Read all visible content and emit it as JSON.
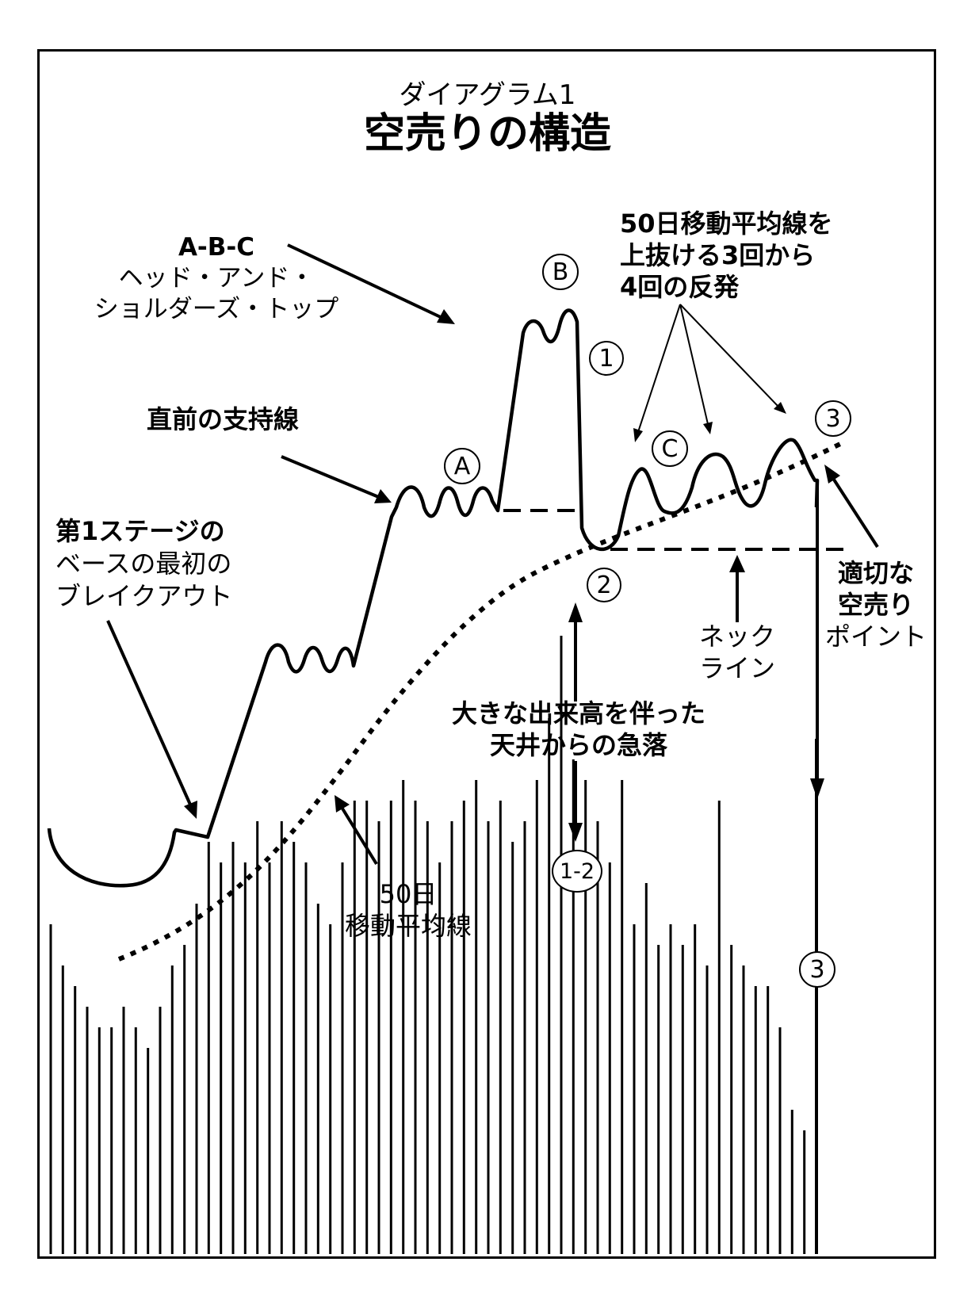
{
  "title": {
    "subtitle": "ダイアグラム1",
    "main": "空売りの構造"
  },
  "annotations": {
    "abc_head_shoulders": [
      "A-B-C",
      "ヘッド・アンド・",
      "ショルダーズ・トップ"
    ],
    "rebound_50day": [
      "50日移動平均線を",
      "上抜ける3回から",
      "4回の反発"
    ],
    "prior_support": "直前の支持線",
    "first_stage_breakout": [
      "第1ステージの",
      "ベースの最初の",
      "ブレイクアウト"
    ],
    "proper_short_point": [
      "適切な",
      "空売り",
      "ポイント"
    ],
    "neckline": [
      "ネック",
      "ライン"
    ],
    "heavy_volume_drop": [
      "大きな出来高を伴った",
      "天井からの急落"
    ],
    "ma50": [
      "50日",
      "移動平均線"
    ]
  },
  "markers": {
    "A": "A",
    "B": "B",
    "C": "C",
    "one": "1",
    "two": "2",
    "three_price": "3",
    "one_two": "1-2",
    "three_volume": "3"
  },
  "chart_data": {
    "type": "bar",
    "title": "",
    "series": [
      {
        "values": [
          32,
          28,
          26,
          24,
          22,
          22,
          24,
          22,
          20,
          24,
          28,
          30,
          34,
          40,
          38,
          40,
          38,
          42,
          38,
          42,
          40,
          38,
          34,
          32,
          38,
          44,
          44,
          42,
          44,
          46,
          44,
          42,
          38,
          42,
          44,
          46,
          42,
          44,
          40,
          42,
          46,
          52,
          60,
          48,
          46,
          42,
          38,
          46,
          32,
          36,
          30,
          32,
          30,
          32,
          28,
          44,
          30,
          28,
          26,
          26,
          22,
          14,
          12,
          50
        ]
      }
    ]
  }
}
